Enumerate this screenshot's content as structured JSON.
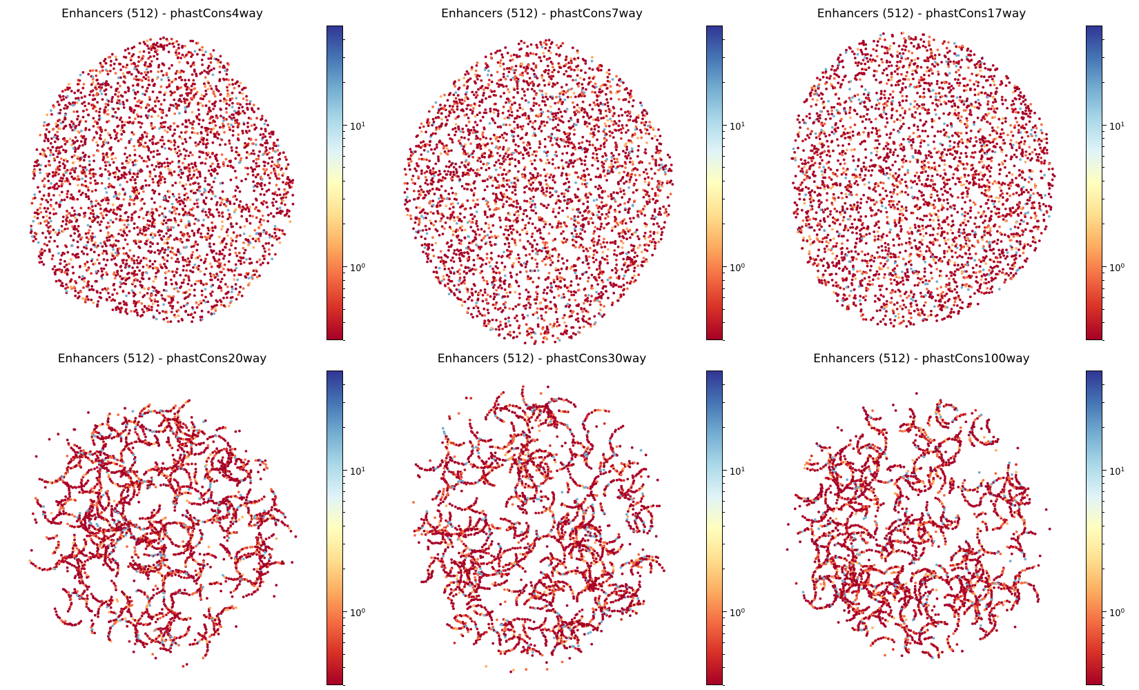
{
  "figure": {
    "colormap": [
      "#a50026",
      "#d73027",
      "#f46d43",
      "#fdae61",
      "#fee090",
      "#ffffbf",
      "#e0f3f8",
      "#abd9e9",
      "#74add1",
      "#4575b4",
      "#313695"
    ],
    "point_color_dominant": "#a50026",
    "point_colors_mix": [
      "#a50026",
      "#a50026",
      "#a50026",
      "#b2182b",
      "#d73027",
      "#a50026",
      "#f46d43",
      "#a50026",
      "#fdae61",
      "#a50026",
      "#bd0026",
      "#a50026",
      "#f46d43",
      "#a50026",
      "#74add1",
      "#a50026"
    ]
  },
  "chart_data": [
    {
      "type": "scatter",
      "title": "Enhancers (512) - phastCons4way",
      "colorbar": {
        "scale": "log",
        "ticks": [
          {
            "base": "10",
            "exp": "0",
            "value": 1
          },
          {
            "base": "10",
            "exp": "1",
            "value": 10
          }
        ],
        "range": [
          0.3,
          50
        ]
      },
      "shape": "round-blob",
      "point_count": 3300
    },
    {
      "type": "scatter",
      "title": "Enhancers (512) - phastCons7way",
      "colorbar": {
        "scale": "log",
        "ticks": [
          {
            "base": "10",
            "exp": "0",
            "value": 1
          },
          {
            "base": "10",
            "exp": "1",
            "value": 10
          }
        ],
        "range": [
          0.3,
          50
        ]
      },
      "shape": "round-blob-with-lower-lobe",
      "point_count": 3300
    },
    {
      "type": "scatter",
      "title": "Enhancers (512) - phastCons17way",
      "colorbar": {
        "scale": "log",
        "ticks": [
          {
            "base": "10",
            "exp": "0",
            "value": 1
          },
          {
            "base": "10",
            "exp": "1",
            "value": 10
          }
        ],
        "range": [
          0.3,
          50
        ]
      },
      "shape": "round-blob-with-top-lobe",
      "point_count": 3300
    },
    {
      "type": "scatter",
      "title": "Enhancers (512) - phastCons20way",
      "colorbar": {
        "scale": "log",
        "ticks": [
          {
            "base": "10",
            "exp": "0",
            "value": 1
          },
          {
            "base": "10",
            "exp": "1",
            "value": 10
          }
        ],
        "range": [
          0.3,
          50
        ]
      },
      "shape": "round-blob-stringy",
      "point_count": 3300
    },
    {
      "type": "scatter",
      "title": "Enhancers (512) - phastCons30way",
      "colorbar": {
        "scale": "log",
        "ticks": [
          {
            "base": "10",
            "exp": "0",
            "value": 1
          },
          {
            "base": "10",
            "exp": "1",
            "value": 10
          }
        ],
        "range": [
          0.3,
          50
        ]
      },
      "shape": "round-blob-stringy",
      "point_count": 3300
    },
    {
      "type": "scatter",
      "title": "Enhancers (512) - phastCons100way",
      "colorbar": {
        "scale": "log",
        "ticks": [
          {
            "base": "10",
            "exp": "0",
            "value": 1
          },
          {
            "base": "10",
            "exp": "1",
            "value": 10
          }
        ],
        "range": [
          0.3,
          50
        ]
      },
      "shape": "round-blob-stringy",
      "point_count": 3300
    }
  ]
}
